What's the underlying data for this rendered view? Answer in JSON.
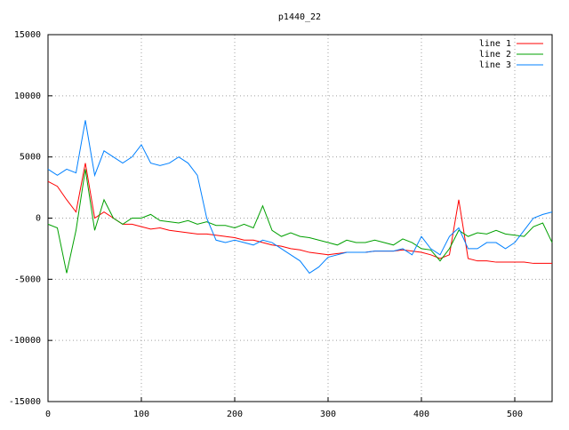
{
  "chart_data": {
    "type": "line",
    "title": "p1440_22",
    "x": [
      0,
      10,
      20,
      30,
      40,
      50,
      60,
      70,
      80,
      90,
      100,
      110,
      120,
      130,
      140,
      150,
      160,
      170,
      180,
      190,
      200,
      210,
      220,
      230,
      240,
      250,
      260,
      270,
      280,
      290,
      300,
      310,
      320,
      330,
      340,
      350,
      360,
      370,
      380,
      390,
      400,
      410,
      420,
      430,
      440,
      450,
      460,
      470,
      480,
      490,
      500,
      510,
      520,
      530,
      540
    ],
    "series": [
      {
        "name": "line 1",
        "color": "#ff0000",
        "values": [
          3000,
          2600,
          1500,
          500,
          4500,
          0,
          500,
          0,
          -500,
          -500,
          -700,
          -900,
          -800,
          -1000,
          -1100,
          -1200,
          -1300,
          -1300,
          -1400,
          -1500,
          -1600,
          -1800,
          -1800,
          -2000,
          -2200,
          -2300,
          -2500,
          -2600,
          -2800,
          -2900,
          -3000,
          -2900,
          -2800,
          -2800,
          -2800,
          -2700,
          -2700,
          -2700,
          -2600,
          -2700,
          -2800,
          -3000,
          -3300,
          -3000,
          1500,
          -3300,
          -3500,
          -3500,
          -3600,
          -3600,
          -3600,
          -3600,
          -3700,
          -3700,
          -3700
        ]
      },
      {
        "name": "line 2",
        "color": "#00a000",
        "values": [
          -500,
          -800,
          -4500,
          -1000,
          4000,
          -1000,
          1500,
          0,
          -500,
          0,
          0,
          300,
          -200,
          -300,
          -400,
          -200,
          -500,
          -300,
          -600,
          -600,
          -800,
          -500,
          -800,
          1000,
          -1000,
          -1500,
          -1200,
          -1500,
          -1600,
          -1800,
          -2000,
          -2200,
          -1800,
          -2000,
          -2000,
          -1800,
          -2000,
          -2200,
          -1700,
          -2000,
          -2500,
          -2600,
          -3500,
          -2500,
          -1000,
          -1500,
          -1200,
          -1300,
          -1000,
          -1300,
          -1400,
          -1500,
          -700,
          -400,
          -2000
        ]
      },
      {
        "name": "line 3",
        "color": "#0080ff",
        "values": [
          4000,
          3500,
          4000,
          3700,
          8000,
          3500,
          5500,
          5000,
          4500,
          5000,
          6000,
          4500,
          4300,
          4500,
          5000,
          4500,
          3500,
          0,
          -1800,
          -2000,
          -1800,
          -2000,
          -2200,
          -1800,
          -2000,
          -2500,
          -3000,
          -3500,
          -4500,
          -4000,
          -3200,
          -3000,
          -2800,
          -2800,
          -2800,
          -2700,
          -2700,
          -2700,
          -2500,
          -3000,
          -1500,
          -2500,
          -3000,
          -1500,
          -800,
          -2500,
          -2500,
          -2000,
          -2000,
          -2500,
          -2000,
          -1000,
          0,
          300,
          500
        ]
      }
    ],
    "xlim": [
      0,
      540
    ],
    "ylim": [
      -15000,
      15000
    ],
    "xticks": [
      0,
      100,
      200,
      300,
      400,
      500
    ],
    "yticks": [
      -15000,
      -10000,
      -5000,
      0,
      5000,
      10000,
      15000
    ],
    "grid": true,
    "legend": "top-right"
  }
}
